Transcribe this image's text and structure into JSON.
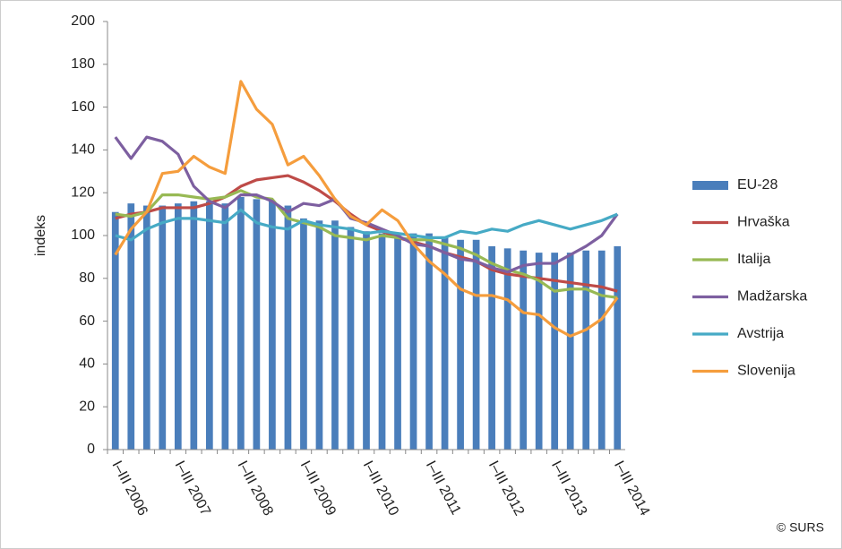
{
  "chart_data": {
    "type": "combo",
    "y_label": "indeks",
    "copyright": "© SURS",
    "categories": [
      "I–III 2006",
      null,
      null,
      null,
      "I–III 2007",
      null,
      null,
      null,
      "I–III 2008",
      null,
      null,
      null,
      "I–III 2009",
      null,
      null,
      null,
      "I–III 2010",
      null,
      null,
      null,
      "I–III 2011",
      null,
      null,
      null,
      "I–III 2012",
      null,
      null,
      null,
      "I–III 2013",
      null,
      null,
      null,
      "I–III 2014"
    ],
    "ylim": [
      0,
      200
    ],
    "yticks": [
      0,
      20,
      40,
      60,
      80,
      100,
      120,
      140,
      160,
      180,
      200
    ],
    "grid": false,
    "legend": "right",
    "series": [
      {
        "name": "EU-28",
        "type": "bar",
        "color": "#4a7ebb",
        "values": [
          111,
          115,
          114,
          114,
          115,
          116,
          116,
          115,
          118,
          117,
          116,
          114,
          108,
          107,
          107,
          104,
          102,
          101,
          100,
          101,
          101,
          99,
          98,
          98,
          95,
          94,
          93,
          92,
          92,
          92,
          93,
          93,
          95
        ]
      },
      {
        "name": "Hrvaška",
        "type": "line",
        "color": "#be4b48",
        "values": [
          108,
          110,
          111,
          113,
          113,
          113,
          115,
          118,
          123,
          126,
          127,
          128,
          125,
          121,
          116,
          110,
          105,
          102,
          99,
          97,
          95,
          92,
          90,
          88,
          84,
          82,
          81,
          80,
          79,
          78,
          77,
          76,
          74
        ]
      },
      {
        "name": "Italija",
        "type": "line",
        "color": "#98b954",
        "values": [
          110,
          109,
          111,
          119,
          119,
          118,
          117,
          118,
          121,
          118,
          117,
          108,
          106,
          104,
          100,
          99,
          98,
          100,
          99,
          98,
          98,
          96,
          94,
          91,
          87,
          84,
          82,
          79,
          74,
          75,
          75,
          72,
          71
        ]
      },
      {
        "name": "Madžarska",
        "type": "line",
        "color": "#7d5fa0",
        "values": [
          146,
          136,
          146,
          144,
          138,
          123,
          116,
          113,
          119,
          119,
          116,
          111,
          115,
          114,
          117,
          108,
          106,
          103,
          100,
          96,
          95,
          92,
          89,
          88,
          85,
          83,
          86,
          87,
          87,
          91,
          95,
          100,
          110
        ]
      },
      {
        "name": "Avstrija",
        "type": "line",
        "color": "#46aac5",
        "values": [
          100,
          98,
          103,
          106,
          108,
          108,
          107,
          106,
          112,
          106,
          104,
          103,
          107,
          105,
          104,
          103,
          101,
          102,
          101,
          100,
          99,
          99,
          102,
          101,
          103,
          102,
          105,
          107,
          105,
          103,
          105,
          107,
          110
        ]
      },
      {
        "name": "Slovenija",
        "type": "line",
        "color": "#f59d3d",
        "values": [
          91,
          103,
          111,
          129,
          130,
          137,
          132,
          129,
          172,
          159,
          152,
          133,
          137,
          128,
          117,
          109,
          105,
          112,
          107,
          96,
          88,
          82,
          75,
          72,
          72,
          70,
          64,
          63,
          57,
          53,
          56,
          61,
          71
        ]
      }
    ]
  }
}
